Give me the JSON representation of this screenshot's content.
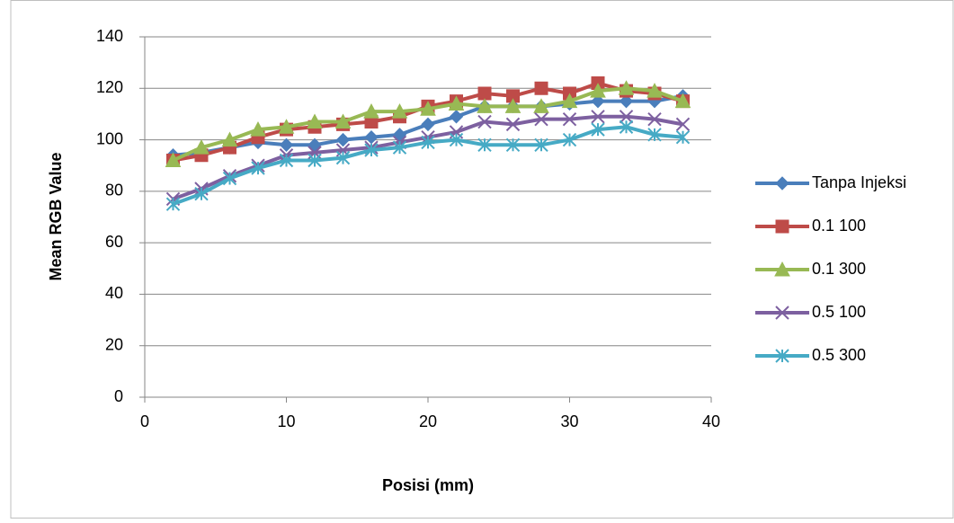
{
  "chart_data": {
    "type": "line",
    "x_label": "Posisi (mm)",
    "y_label": "Mean RGB Value",
    "x": [
      2,
      4,
      6,
      8,
      10,
      12,
      14,
      16,
      18,
      20,
      22,
      24,
      26,
      28,
      30,
      32,
      34,
      36,
      38
    ],
    "series": [
      {
        "name": "Tanpa Injeksi",
        "color": "#4a7ebb",
        "marker": "diamond",
        "values": [
          94,
          95,
          97,
          99,
          98,
          98,
          100,
          101,
          102,
          106,
          109,
          113,
          113,
          113,
          114,
          115,
          115,
          115,
          117
        ]
      },
      {
        "name": "0.1 100",
        "color": "#be4b48",
        "marker": "square",
        "values": [
          92,
          94,
          97,
          101,
          104,
          105,
          106,
          107,
          109,
          113,
          115,
          118,
          117,
          120,
          118,
          122,
          119,
          118,
          115
        ]
      },
      {
        "name": "0.1 300",
        "color": "#98b954",
        "marker": "triangle",
        "values": [
          92,
          97,
          100,
          104,
          105,
          107,
          107,
          111,
          111,
          112,
          114,
          113,
          113,
          113,
          115,
          119,
          120,
          119,
          115
        ]
      },
      {
        "name": "0.5 100",
        "color": "#7d60a0",
        "marker": "x",
        "values": [
          77,
          81,
          86,
          90,
          94,
          95,
          96,
          97,
          99,
          101,
          103,
          107,
          106,
          108,
          108,
          109,
          109,
          108,
          106
        ]
      },
      {
        "name": "0.5 300",
        "color": "#46aac5",
        "marker": "star",
        "values": [
          75,
          79,
          85,
          89,
          92,
          92,
          93,
          96,
          97,
          99,
          100,
          98,
          98,
          98,
          100,
          104,
          105,
          102,
          101
        ]
      }
    ],
    "xlim": [
      0,
      40
    ],
    "xticks": [
      0,
      10,
      20,
      30,
      40
    ],
    "ylim": [
      0,
      140
    ],
    "yticks": [
      0,
      20,
      40,
      60,
      80,
      100,
      120,
      140
    ],
    "grid": true,
    "legend": "right"
  }
}
